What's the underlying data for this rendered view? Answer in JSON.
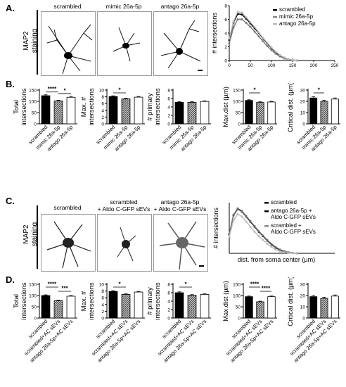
{
  "panel_labels": [
    "A.",
    "B.",
    "C.",
    "D."
  ],
  "side_label_A": "MAP2\nstaining",
  "side_label_C": "MAP2\nstaining",
  "A_titles": [
    "scrambled",
    "mimic 26a-5p",
    "antago 26a-5p"
  ],
  "C_titles": [
    "scrambled",
    "scrambled\n+ Aldo C-GFP sEVs",
    "antago 26a-5p\n+ Aldo C-GFP sEVs"
  ],
  "colors": {
    "black": "#000000",
    "hatch": "#888888",
    "white": "#ffffff"
  },
  "chart_data": [
    {
      "id": "A_sholl",
      "type": "line",
      "ylabel": "# intersections",
      "xlabel": "",
      "xlim": [
        0,
        250
      ],
      "ylim": [
        0,
        8
      ],
      "xticks": [
        0,
        50,
        100,
        150,
        200,
        250
      ],
      "yticks": [
        0,
        2,
        4,
        6,
        8
      ],
      "legend": [
        "scrambled",
        "mimic 26a-5p",
        "antago 26a-5p"
      ],
      "series": [
        {
          "name": "scrambled",
          "x": [
            0,
            10,
            20,
            30,
            40,
            50,
            60,
            70,
            80,
            90,
            100,
            110,
            120,
            130,
            140,
            150,
            160
          ],
          "y": [
            3,
            5.5,
            6.8,
            6.7,
            6.1,
            5.4,
            4.7,
            4,
            3.2,
            2.5,
            1.8,
            1.2,
            0.7,
            0.4,
            0.2,
            0.1,
            0
          ]
        },
        {
          "name": "mimic 26a-5p",
          "x": [
            0,
            10,
            20,
            30,
            40,
            50,
            60,
            70,
            80,
            90,
            100,
            110,
            120,
            130,
            140,
            150,
            160
          ],
          "y": [
            2.5,
            4.8,
            6,
            6,
            5.5,
            4.9,
            4.2,
            3.5,
            2.8,
            2.1,
            1.5,
            1,
            0.6,
            0.3,
            0.15,
            0.05,
            0
          ]
        },
        {
          "name": "antago 26a-5p",
          "x": [
            0,
            10,
            20,
            30,
            40,
            50,
            60,
            70,
            80,
            90,
            100,
            110,
            120,
            130,
            140,
            150,
            160
          ],
          "y": [
            3.2,
            5.7,
            7.1,
            7,
            6.3,
            5.6,
            4.9,
            4.1,
            3.3,
            2.6,
            1.9,
            1.3,
            0.8,
            0.45,
            0.2,
            0.1,
            0
          ]
        }
      ]
    },
    {
      "id": "B1",
      "type": "bar",
      "ylabel": "Total\nintersections",
      "ylim": [
        0,
        150
      ],
      "yticks": [
        0,
        50,
        100,
        150
      ],
      "categories": [
        "scrambled",
        "mimic 26a-5p",
        "antago 26a-5p"
      ],
      "values": [
        125,
        102,
        118
      ],
      "errors": [
        4,
        3,
        4
      ],
      "sig": [
        {
          "from": 0,
          "to": 1,
          "label": "****"
        },
        {
          "from": 1,
          "to": 2,
          "label": "*"
        }
      ]
    },
    {
      "id": "B2",
      "type": "bar",
      "ylabel": "Max. #\nintersections",
      "ylim": [
        0,
        10
      ],
      "yticks": [
        0,
        2,
        4,
        6,
        8,
        10
      ],
      "categories": [
        "scrambled",
        "mimic 26a-5p",
        "antago 26a-5p"
      ],
      "values": [
        8.1,
        7.4,
        7.9
      ],
      "errors": [
        0.2,
        0.2,
        0.2
      ],
      "sig": [
        {
          "from": 0,
          "to": 1,
          "label": "*"
        }
      ]
    },
    {
      "id": "B3",
      "type": "bar",
      "ylabel": "# primary\nintersections",
      "ylim": [
        0,
        8
      ],
      "yticks": [
        0,
        2,
        4,
        6,
        8
      ],
      "categories": [
        "scrambled",
        "mimic 26a-5p",
        "antago 26a-5p"
      ],
      "values": [
        5.1,
        5.1,
        5.3
      ],
      "errors": [
        0.15,
        0.15,
        0.15
      ],
      "sig": []
    },
    {
      "id": "B4",
      "type": "bar",
      "ylabel": "Max.dist (µm)",
      "ylim": [
        0,
        150
      ],
      "yticks": [
        0,
        50,
        100,
        150
      ],
      "categories": [
        "scrambled",
        "mimic 26a-5p",
        "antago 26a-5p"
      ],
      "values": [
        104,
        95,
        97
      ],
      "errors": [
        3,
        3,
        3
      ],
      "sig": [
        {
          "from": 0,
          "to": 1,
          "label": "*"
        }
      ]
    },
    {
      "id": "B5",
      "type": "bar",
      "ylabel": "Critical dist. (µm)",
      "ylim": [
        0,
        30
      ],
      "yticks": [
        0,
        10,
        20,
        30
      ],
      "categories": [
        "scrambled",
        "mimic 26a-5p",
        "antago 26a-5p"
      ],
      "values": [
        23,
        20,
        22
      ],
      "errors": [
        1,
        1,
        1
      ],
      "sig": [
        {
          "from": 0,
          "to": 1,
          "label": "*"
        }
      ]
    },
    {
      "id": "C_sholl",
      "type": "line",
      "ylabel": "# intersections",
      "xlabel": "dist. from soma center (µm)",
      "legend": [
        "scrambled",
        "antago 26a-5p +\nAldo C-GFP sEVs",
        "scrambled +\nAldo C-GFP sEVs"
      ],
      "series": [
        {
          "name": "scrambled",
          "x": [
            0,
            10,
            20,
            30,
            40,
            50,
            60,
            70,
            80,
            90,
            100,
            110,
            120,
            130,
            140,
            150,
            160
          ],
          "y": [
            3,
            6,
            7,
            6.6,
            5.8,
            5,
            4.2,
            3.4,
            2.7,
            2,
            1.4,
            0.9,
            0.5,
            0.3,
            0.15,
            0.05,
            0
          ]
        },
        {
          "name": "antago 26a-5p +\nAldo C-GFP sEVs",
          "x": [
            0,
            10,
            20,
            30,
            40,
            50,
            60,
            70,
            80,
            90,
            100,
            110,
            120,
            130,
            140,
            150,
            160
          ],
          "y": [
            3.1,
            6.1,
            7.1,
            6.7,
            5.9,
            5.1,
            4.3,
            3.5,
            2.8,
            2.1,
            1.5,
            1,
            0.6,
            0.35,
            0.15,
            0.05,
            0
          ]
        },
        {
          "name": "scrambled +\nAldo C-GFP sEVs",
          "x": [
            0,
            10,
            20,
            30,
            40,
            50,
            60,
            70,
            80,
            90,
            100,
            110,
            120,
            130,
            140,
            150,
            160
          ],
          "y": [
            2.6,
            5.2,
            6.2,
            5.8,
            5,
            4.2,
            3.4,
            2.7,
            2.1,
            1.5,
            1,
            0.6,
            0.3,
            0.15,
            0.05,
            0,
            0
          ]
        }
      ]
    },
    {
      "id": "D1",
      "type": "bar",
      "ylabel": "Total\nintersections",
      "ylim": [
        0,
        150
      ],
      "yticks": [
        0,
        50,
        100,
        150
      ],
      "categories": [
        "scrambled",
        "scrambled+AC sEVs",
        "antago 26a-5p+AC sEVs"
      ],
      "values": [
        100,
        77,
        97
      ],
      "errors": [
        3,
        3,
        3
      ],
      "sig": [
        {
          "from": 0,
          "to": 1,
          "label": "****"
        },
        {
          "from": 1,
          "to": 2,
          "label": "***"
        }
      ]
    },
    {
      "id": "D2",
      "type": "bar",
      "ylabel": "Max. #\nintersections",
      "ylim": [
        0,
        10
      ],
      "yticks": [
        0,
        2,
        4,
        6,
        8,
        10
      ],
      "categories": [
        "scrambled",
        "scrambled+AC sEVs",
        "antago 26a-5p+AC sEVs"
      ],
      "values": [
        7.9,
        7,
        7.7
      ],
      "errors": [
        0.2,
        0.2,
        0.2
      ],
      "sig": [
        {
          "from": 0,
          "to": 1,
          "label": "*"
        }
      ]
    },
    {
      "id": "D3",
      "type": "bar",
      "ylabel": "# primary\nintersections",
      "ylim": [
        0,
        8
      ],
      "yticks": [
        0,
        2,
        4,
        6,
        8
      ],
      "categories": [
        "scrambled",
        "scrambled+AC sEVs",
        "antago 26a-5p+AC sEVs"
      ],
      "values": [
        6,
        5.4,
        5.6
      ],
      "errors": [
        0.2,
        0.15,
        0.15
      ],
      "sig": [
        {
          "from": 0,
          "to": 1,
          "label": "*"
        }
      ]
    },
    {
      "id": "D4",
      "type": "bar",
      "ylabel": "Max.dist (µm)",
      "ylim": [
        0,
        150
      ],
      "yticks": [
        0,
        50,
        100,
        150
      ],
      "categories": [
        "scrambled",
        "scrambled+AC sEVs",
        "antago 26a-5p+AC sEVs"
      ],
      "values": [
        95,
        72,
        95
      ],
      "errors": [
        3,
        3,
        3
      ],
      "sig": [
        {
          "from": 0,
          "to": 1,
          "label": "****"
        },
        {
          "from": 1,
          "to": 2,
          "label": "****"
        }
      ]
    },
    {
      "id": "D5",
      "type": "bar",
      "ylabel": "Critical dist. (µm)",
      "ylim": [
        0,
        30
      ],
      "yticks": [
        0,
        10,
        20,
        30
      ],
      "categories": [
        "scrambled",
        "scrambled+AC sEVs",
        "antago 26a-5p+AC sEVs"
      ],
      "values": [
        19,
        17.5,
        19.5
      ],
      "errors": [
        1,
        1,
        1
      ],
      "sig": []
    }
  ]
}
